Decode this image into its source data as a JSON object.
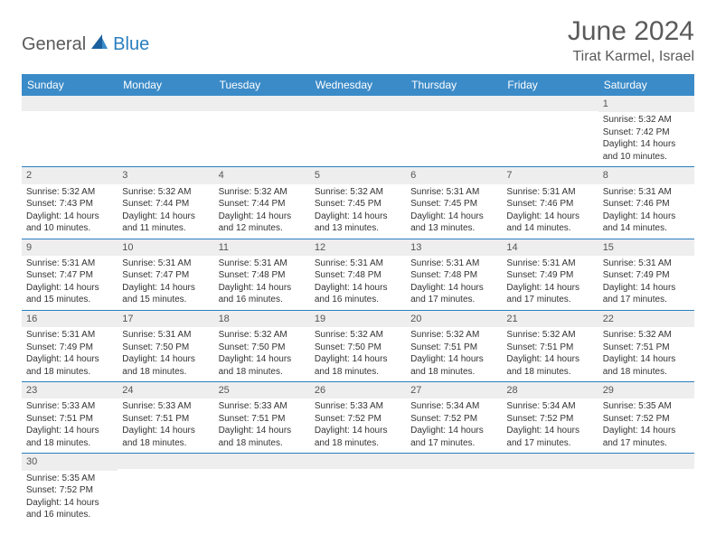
{
  "logo": {
    "part1": "General",
    "part2": "Blue"
  },
  "title": "June 2024",
  "location": "Tirat Karmel, Israel",
  "colors": {
    "header_bg": "#3b8bc8",
    "header_text": "#ffffff",
    "cell_border": "#2a7fbf",
    "daynum_bg": "#eeeeee",
    "text": "#333333",
    "logo_gray": "#5a5a5a",
    "logo_blue": "#2a7fbf"
  },
  "weekdays": [
    "Sunday",
    "Monday",
    "Tuesday",
    "Wednesday",
    "Thursday",
    "Friday",
    "Saturday"
  ],
  "weeks": [
    [
      {
        "n": "",
        "sr": "",
        "ss": "",
        "dl": ""
      },
      {
        "n": "",
        "sr": "",
        "ss": "",
        "dl": ""
      },
      {
        "n": "",
        "sr": "",
        "ss": "",
        "dl": ""
      },
      {
        "n": "",
        "sr": "",
        "ss": "",
        "dl": ""
      },
      {
        "n": "",
        "sr": "",
        "ss": "",
        "dl": ""
      },
      {
        "n": "",
        "sr": "",
        "ss": "",
        "dl": ""
      },
      {
        "n": "1",
        "sr": "Sunrise: 5:32 AM",
        "ss": "Sunset: 7:42 PM",
        "dl": "Daylight: 14 hours and 10 minutes."
      }
    ],
    [
      {
        "n": "2",
        "sr": "Sunrise: 5:32 AM",
        "ss": "Sunset: 7:43 PM",
        "dl": "Daylight: 14 hours and 10 minutes."
      },
      {
        "n": "3",
        "sr": "Sunrise: 5:32 AM",
        "ss": "Sunset: 7:44 PM",
        "dl": "Daylight: 14 hours and 11 minutes."
      },
      {
        "n": "4",
        "sr": "Sunrise: 5:32 AM",
        "ss": "Sunset: 7:44 PM",
        "dl": "Daylight: 14 hours and 12 minutes."
      },
      {
        "n": "5",
        "sr": "Sunrise: 5:32 AM",
        "ss": "Sunset: 7:45 PM",
        "dl": "Daylight: 14 hours and 13 minutes."
      },
      {
        "n": "6",
        "sr": "Sunrise: 5:31 AM",
        "ss": "Sunset: 7:45 PM",
        "dl": "Daylight: 14 hours and 13 minutes."
      },
      {
        "n": "7",
        "sr": "Sunrise: 5:31 AM",
        "ss": "Sunset: 7:46 PM",
        "dl": "Daylight: 14 hours and 14 minutes."
      },
      {
        "n": "8",
        "sr": "Sunrise: 5:31 AM",
        "ss": "Sunset: 7:46 PM",
        "dl": "Daylight: 14 hours and 14 minutes."
      }
    ],
    [
      {
        "n": "9",
        "sr": "Sunrise: 5:31 AM",
        "ss": "Sunset: 7:47 PM",
        "dl": "Daylight: 14 hours and 15 minutes."
      },
      {
        "n": "10",
        "sr": "Sunrise: 5:31 AM",
        "ss": "Sunset: 7:47 PM",
        "dl": "Daylight: 14 hours and 15 minutes."
      },
      {
        "n": "11",
        "sr": "Sunrise: 5:31 AM",
        "ss": "Sunset: 7:48 PM",
        "dl": "Daylight: 14 hours and 16 minutes."
      },
      {
        "n": "12",
        "sr": "Sunrise: 5:31 AM",
        "ss": "Sunset: 7:48 PM",
        "dl": "Daylight: 14 hours and 16 minutes."
      },
      {
        "n": "13",
        "sr": "Sunrise: 5:31 AM",
        "ss": "Sunset: 7:48 PM",
        "dl": "Daylight: 14 hours and 17 minutes."
      },
      {
        "n": "14",
        "sr": "Sunrise: 5:31 AM",
        "ss": "Sunset: 7:49 PM",
        "dl": "Daylight: 14 hours and 17 minutes."
      },
      {
        "n": "15",
        "sr": "Sunrise: 5:31 AM",
        "ss": "Sunset: 7:49 PM",
        "dl": "Daylight: 14 hours and 17 minutes."
      }
    ],
    [
      {
        "n": "16",
        "sr": "Sunrise: 5:31 AM",
        "ss": "Sunset: 7:49 PM",
        "dl": "Daylight: 14 hours and 18 minutes."
      },
      {
        "n": "17",
        "sr": "Sunrise: 5:31 AM",
        "ss": "Sunset: 7:50 PM",
        "dl": "Daylight: 14 hours and 18 minutes."
      },
      {
        "n": "18",
        "sr": "Sunrise: 5:32 AM",
        "ss": "Sunset: 7:50 PM",
        "dl": "Daylight: 14 hours and 18 minutes."
      },
      {
        "n": "19",
        "sr": "Sunrise: 5:32 AM",
        "ss": "Sunset: 7:50 PM",
        "dl": "Daylight: 14 hours and 18 minutes."
      },
      {
        "n": "20",
        "sr": "Sunrise: 5:32 AM",
        "ss": "Sunset: 7:51 PM",
        "dl": "Daylight: 14 hours and 18 minutes."
      },
      {
        "n": "21",
        "sr": "Sunrise: 5:32 AM",
        "ss": "Sunset: 7:51 PM",
        "dl": "Daylight: 14 hours and 18 minutes."
      },
      {
        "n": "22",
        "sr": "Sunrise: 5:32 AM",
        "ss": "Sunset: 7:51 PM",
        "dl": "Daylight: 14 hours and 18 minutes."
      }
    ],
    [
      {
        "n": "23",
        "sr": "Sunrise: 5:33 AM",
        "ss": "Sunset: 7:51 PM",
        "dl": "Daylight: 14 hours and 18 minutes."
      },
      {
        "n": "24",
        "sr": "Sunrise: 5:33 AM",
        "ss": "Sunset: 7:51 PM",
        "dl": "Daylight: 14 hours and 18 minutes."
      },
      {
        "n": "25",
        "sr": "Sunrise: 5:33 AM",
        "ss": "Sunset: 7:51 PM",
        "dl": "Daylight: 14 hours and 18 minutes."
      },
      {
        "n": "26",
        "sr": "Sunrise: 5:33 AM",
        "ss": "Sunset: 7:52 PM",
        "dl": "Daylight: 14 hours and 18 minutes."
      },
      {
        "n": "27",
        "sr": "Sunrise: 5:34 AM",
        "ss": "Sunset: 7:52 PM",
        "dl": "Daylight: 14 hours and 17 minutes."
      },
      {
        "n": "28",
        "sr": "Sunrise: 5:34 AM",
        "ss": "Sunset: 7:52 PM",
        "dl": "Daylight: 14 hours and 17 minutes."
      },
      {
        "n": "29",
        "sr": "Sunrise: 5:35 AM",
        "ss": "Sunset: 7:52 PM",
        "dl": "Daylight: 14 hours and 17 minutes."
      }
    ],
    [
      {
        "n": "30",
        "sr": "Sunrise: 5:35 AM",
        "ss": "Sunset: 7:52 PM",
        "dl": "Daylight: 14 hours and 16 minutes."
      },
      {
        "n": "",
        "sr": "",
        "ss": "",
        "dl": ""
      },
      {
        "n": "",
        "sr": "",
        "ss": "",
        "dl": ""
      },
      {
        "n": "",
        "sr": "",
        "ss": "",
        "dl": ""
      },
      {
        "n": "",
        "sr": "",
        "ss": "",
        "dl": ""
      },
      {
        "n": "",
        "sr": "",
        "ss": "",
        "dl": ""
      },
      {
        "n": "",
        "sr": "",
        "ss": "",
        "dl": ""
      }
    ]
  ]
}
